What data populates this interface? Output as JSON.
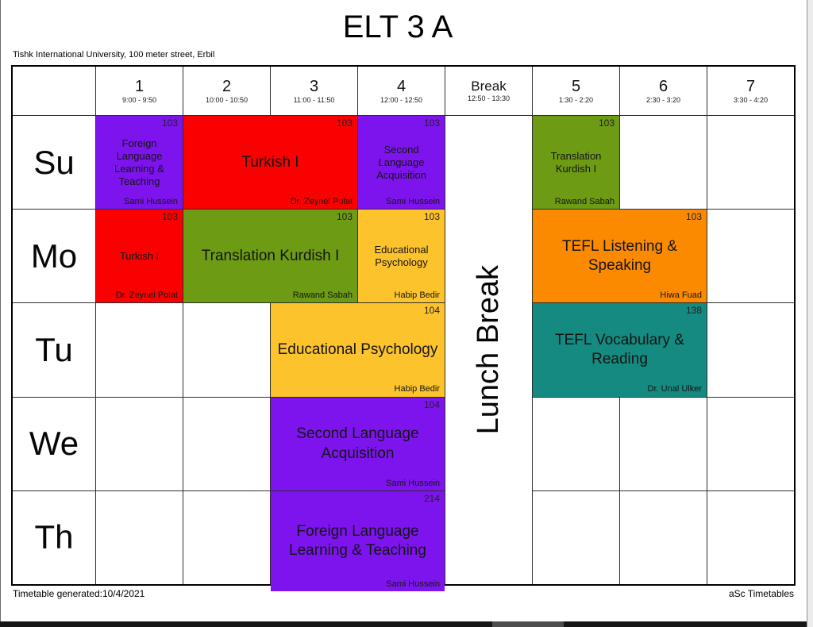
{
  "page": {
    "title": "ELT 3 A",
    "subtitle": "Tishk International University, 100 meter street, Erbil",
    "footer_left": "Timetable generated:10/4/2021",
    "footer_right": "aSc Timetables"
  },
  "timetable": {
    "break_label": "Lunch Break",
    "day_labels": [
      "Su",
      "Mo",
      "Tu",
      "We",
      "Th"
    ],
    "columns": [
      {
        "label": "1",
        "time": "9:00 - 9:50"
      },
      {
        "label": "2",
        "time": "10:00 - 10:50"
      },
      {
        "label": "3",
        "time": "11:00 - 11:50"
      },
      {
        "label": "4",
        "time": "12:00 - 12:50"
      },
      {
        "label": "Break",
        "time": "12:50 - 13:30",
        "is_break": true
      },
      {
        "label": "5",
        "time": "1:30 - 2:20"
      },
      {
        "label": "6",
        "time": "2:30 - 3:20"
      },
      {
        "label": "7",
        "time": "3:30 - 4:20"
      }
    ],
    "colors": {
      "purple": "#7d14ee",
      "red": "#fb0000",
      "green": "#6d9b13",
      "yellow": "#fcc32d",
      "orange": "#fb8a01",
      "teal": "#148a80"
    },
    "lessons": [
      {
        "day": 0,
        "col": 0,
        "span": 1,
        "subject": "Foreign Language Learning & Teaching",
        "room": "103",
        "teacher": "Sami Hussein",
        "color": "purple"
      },
      {
        "day": 0,
        "col": 1,
        "span": 2,
        "subject": "Turkish I",
        "room": "103",
        "teacher": "Dr. Zeynel Polat",
        "color": "red",
        "large": true
      },
      {
        "day": 0,
        "col": 3,
        "span": 1,
        "subject": "Second Language Acquisition",
        "room": "103",
        "teacher": "Sami Hussein",
        "color": "purple"
      },
      {
        "day": 0,
        "col": 5,
        "span": 1,
        "subject": "Translation Kurdish I",
        "room": "103",
        "teacher": "Rawand Sabah",
        "color": "green"
      },
      {
        "day": 1,
        "col": 0,
        "span": 1,
        "subject": "Turkish I",
        "room": "103",
        "teacher": "Dr. Zeynel Polat",
        "color": "red"
      },
      {
        "day": 1,
        "col": 1,
        "span": 2,
        "subject": "Translation Kurdish I",
        "room": "103",
        "teacher": "Rawand Sabah",
        "color": "green",
        "large": true
      },
      {
        "day": 1,
        "col": 3,
        "span": 1,
        "subject": "Educational Psychology",
        "room": "103",
        "teacher": "Habip Bedir",
        "color": "yellow"
      },
      {
        "day": 1,
        "col": 5,
        "span": 2,
        "subject": "TEFL Listening & Speaking",
        "room": "103",
        "teacher": "Hiwa Fuad",
        "color": "orange",
        "large": true
      },
      {
        "day": 2,
        "col": 2,
        "span": 2,
        "subject": "Educational Psychology",
        "room": "104",
        "teacher": "Habip Bedir",
        "color": "yellow",
        "large": true
      },
      {
        "day": 2,
        "col": 5,
        "span": 2,
        "subject": "TEFL Vocabulary & Reading",
        "room": "138",
        "teacher": "Dr. Unal Ulker",
        "color": "teal",
        "large": true
      },
      {
        "day": 3,
        "col": 2,
        "span": 2,
        "subject": "Second Language Acquisition",
        "room": "104",
        "teacher": "Sami Hussein",
        "color": "purple",
        "large": true
      },
      {
        "day": 4,
        "col": 2,
        "span": 2,
        "subject": "Foreign Language Learning & Teaching",
        "room": "214",
        "teacher": "Sami Hussein",
        "color": "purple",
        "large": true,
        "overflow_bottom": true
      }
    ]
  }
}
